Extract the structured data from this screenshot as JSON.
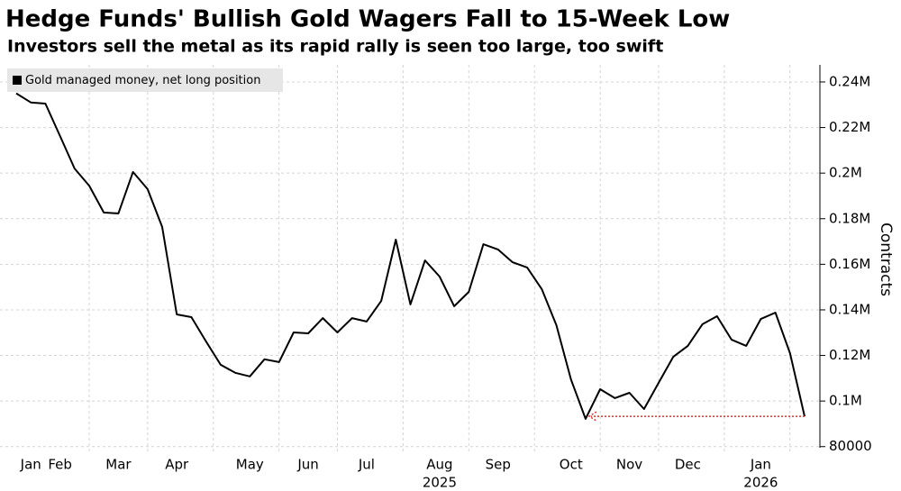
{
  "chart_data": {
    "type": "line",
    "title": "Hedge Funds' Bullish Gold Wagers Fall to 15-Week Low",
    "subtitle": "Investors sell the metal as its rapid rally is seen too large, too swift",
    "y_axis_label": "Contracts",
    "categories": [
      null,
      "Jan",
      null,
      "Feb",
      null,
      null,
      null,
      "Mar",
      null,
      null,
      null,
      "Apr",
      null,
      null,
      null,
      null,
      "May",
      null,
      null,
      null,
      "Jun",
      null,
      null,
      null,
      "Jul",
      null,
      null,
      null,
      null,
      "Aug",
      null,
      null,
      null,
      "Sep",
      null,
      null,
      null,
      null,
      "Oct",
      null,
      null,
      null,
      "Nov",
      null,
      null,
      null,
      "Dec",
      null,
      null,
      null,
      null,
      "Jan",
      null,
      null,
      null
    ],
    "year_labels": [
      "2025",
      "2026"
    ],
    "series": [
      {
        "name": "Gold managed money, net long position",
        "color": "#000000",
        "values": [
          235000,
          231000,
          230500,
          216300,
          202000,
          194500,
          182700,
          182300,
          200500,
          193000,
          176400,
          138000,
          136800,
          126200,
          115900,
          112400,
          110800,
          118300,
          117100,
          130100,
          129700,
          136400,
          130100,
          136400,
          134900,
          143900,
          170800,
          142400,
          161700,
          154600,
          141600,
          147900,
          168800,
          166500,
          160900,
          158600,
          149100,
          133300,
          109500,
          92200,
          105200,
          101300,
          103600,
          96500,
          108000,
          119400,
          124200,
          133700,
          137200,
          126900,
          124200,
          136000,
          138800,
          121000,
          93300
        ]
      }
    ],
    "ylim": [
      79500,
      247500
    ],
    "yticks": [
      80000,
      {
        "value": 100000,
        "label": "0.1M"
      },
      {
        "value": 120000,
        "label": "0.12M"
      },
      {
        "value": 140000,
        "label": "0.14M"
      },
      {
        "value": 160000,
        "label": "0.16M"
      },
      {
        "value": 180000,
        "label": "0.18M"
      },
      {
        "value": 200000,
        "label": "0.2M"
      },
      {
        "value": 220000,
        "label": "0.22M"
      },
      {
        "value": 240000,
        "label": "0.24M"
      }
    ],
    "grid": true,
    "legend": "top-left"
  }
}
